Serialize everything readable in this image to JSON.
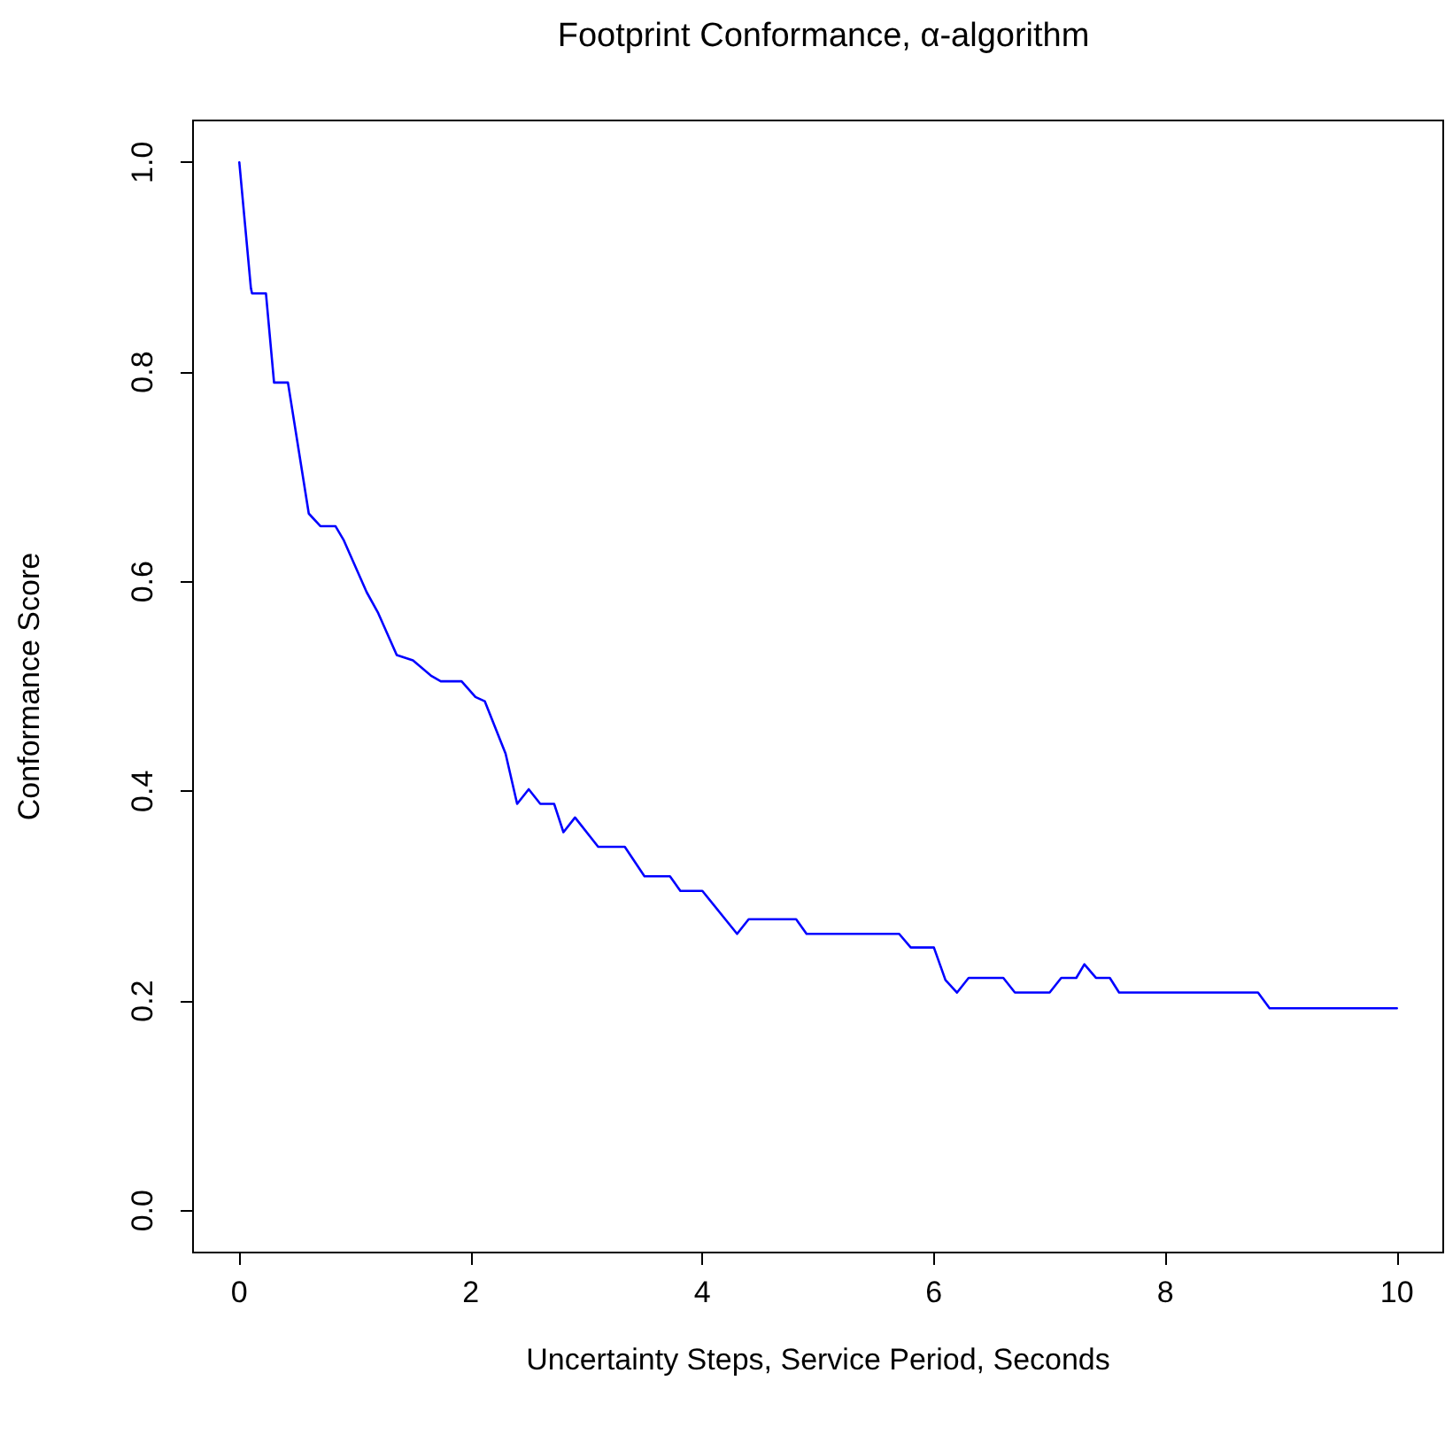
{
  "chart_data": {
    "type": "line",
    "title": "Footprint Conformance, α-algorithm",
    "xlabel": "Uncertainty Steps, Service Period, Seconds",
    "ylabel": "Conformance Score",
    "x": [
      0,
      0.1,
      0.11,
      0.23,
      0.3,
      0.42,
      0.6,
      0.7,
      0.83,
      0.9,
      1.1,
      1.2,
      1.36,
      1.5,
      1.66,
      1.74,
      1.92,
      2.04,
      2.12,
      2.3,
      2.4,
      2.5,
      2.6,
      2.72,
      2.8,
      2.9,
      3.1,
      3.33,
      3.5,
      3.72,
      3.81,
      4.0,
      4.3,
      4.4,
      4.81,
      4.9,
      5.7,
      5.8,
      6.0,
      6.1,
      6.2,
      6.3,
      6.6,
      6.7,
      7.0,
      7.1,
      7.23,
      7.3,
      7.4,
      7.52,
      7.6,
      8.8,
      8.9,
      10
    ],
    "series": [
      {
        "color": "#0000ff",
        "values": [
          1.0,
          0.88,
          0.875,
          0.875,
          0.79,
          0.79,
          0.665,
          0.653,
          0.653,
          0.64,
          0.59,
          0.57,
          0.53,
          0.525,
          0.51,
          0.505,
          0.505,
          0.49,
          0.486,
          0.436,
          0.388,
          0.402,
          0.388,
          0.388,
          0.361,
          0.375,
          0.347,
          0.347,
          0.319,
          0.319,
          0.305,
          0.305,
          0.264,
          0.278,
          0.278,
          0.264,
          0.264,
          0.251,
          0.251,
          0.22,
          0.208,
          0.222,
          0.222,
          0.208,
          0.208,
          0.222,
          0.222,
          0.235,
          0.222,
          0.222,
          0.208,
          0.208,
          0.193,
          0.193
        ]
      }
    ],
    "xlim": [
      -0.4,
      10.4
    ],
    "xticks": [
      0,
      2,
      4,
      6,
      8,
      10
    ],
    "ylim": [
      -0.04,
      1.04
    ],
    "yticks": [
      {
        "value": 0,
        "label": "0.0"
      },
      {
        "value": 0.2,
        "label": "0.2"
      },
      {
        "value": 0.4,
        "label": "0.4"
      },
      {
        "value": 0.6,
        "label": "0.6"
      },
      {
        "value": 0.8,
        "label": "0.8"
      },
      {
        "value": 1,
        "label": "1.0"
      }
    ],
    "grid": false,
    "marker": "none",
    "line_style": "solid"
  }
}
